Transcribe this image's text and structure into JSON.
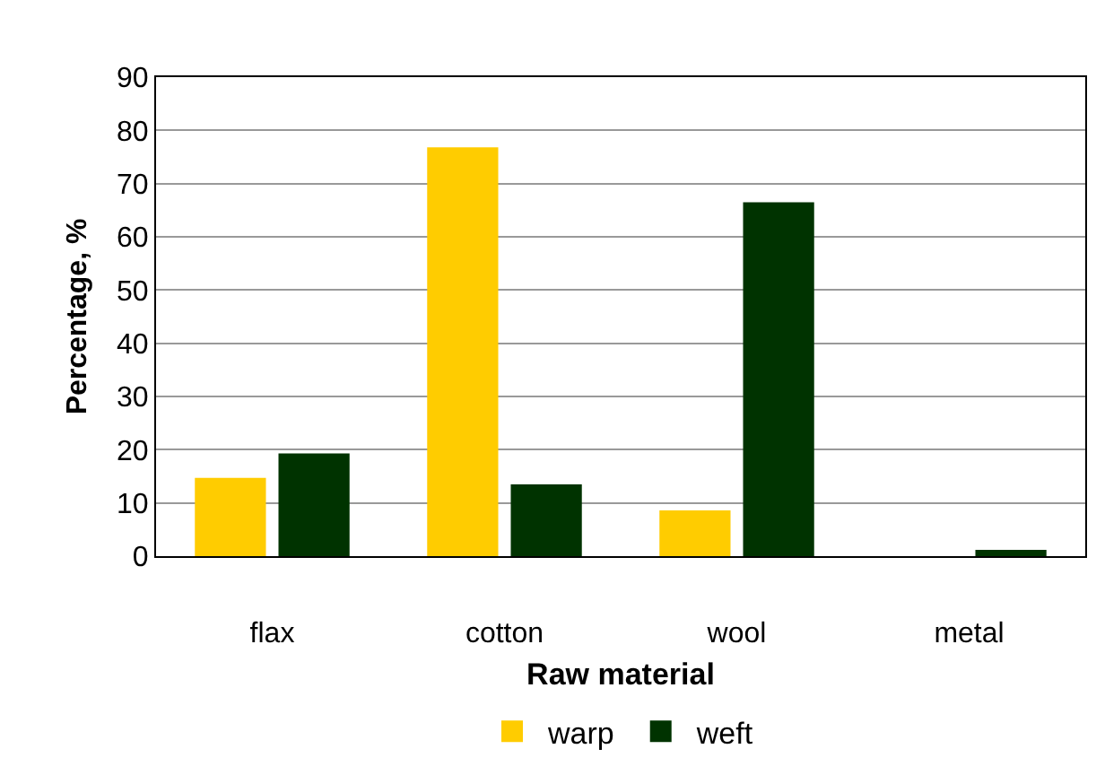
{
  "chart_data": {
    "type": "bar",
    "xlabel": "Raw material",
    "ylabel": "Percentage, %",
    "categories": [
      "flax",
      "cotton",
      "wool",
      "metal"
    ],
    "series": [
      {
        "name": "warp",
        "color": "#ffcc00",
        "values": [
          14.7,
          76.8,
          8.6,
          0
        ]
      },
      {
        "name": "weft",
        "color": "#003300",
        "values": [
          19.3,
          13.5,
          66.5,
          1.2
        ]
      }
    ],
    "ylim": [
      0,
      90
    ],
    "yticks": [
      0,
      10,
      20,
      30,
      40,
      50,
      60,
      70,
      80,
      90
    ],
    "grid": "y",
    "legend": "bottom"
  }
}
